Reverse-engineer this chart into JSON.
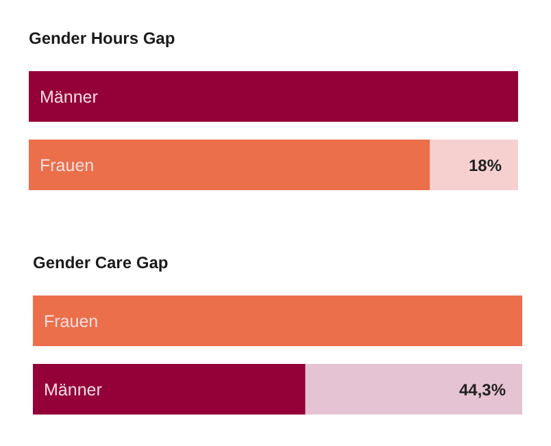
{
  "chart_data": [
    {
      "type": "bar",
      "title": "Gender Hours Gap",
      "orientation": "horizontal",
      "stacked": true,
      "xlim": [
        0,
        100
      ],
      "tick_labels": false,
      "categories": [
        "Männer",
        "Frauen"
      ],
      "series": [
        {
          "values": [
            100,
            82
          ],
          "colors": [
            "#940038",
            "#ea6f4a"
          ]
        },
        {
          "values": [
            null,
            18
          ],
          "color": "#f6d0cf",
          "value_labels": [
            null,
            "18%"
          ]
        }
      ]
    },
    {
      "type": "bar",
      "title": "Gender Care Gap",
      "orientation": "horizontal",
      "stacked": true,
      "xlim": [
        0,
        100
      ],
      "tick_labels": false,
      "categories": [
        "Frauen",
        "Männer"
      ],
      "series": [
        {
          "values": [
            100,
            55.7
          ],
          "colors": [
            "#ea6f4a",
            "#940038"
          ]
        },
        {
          "values": [
            null,
            44.3
          ],
          "color": "#e6c3d2",
          "value_labels": [
            null,
            "44,3%"
          ]
        }
      ]
    }
  ]
}
